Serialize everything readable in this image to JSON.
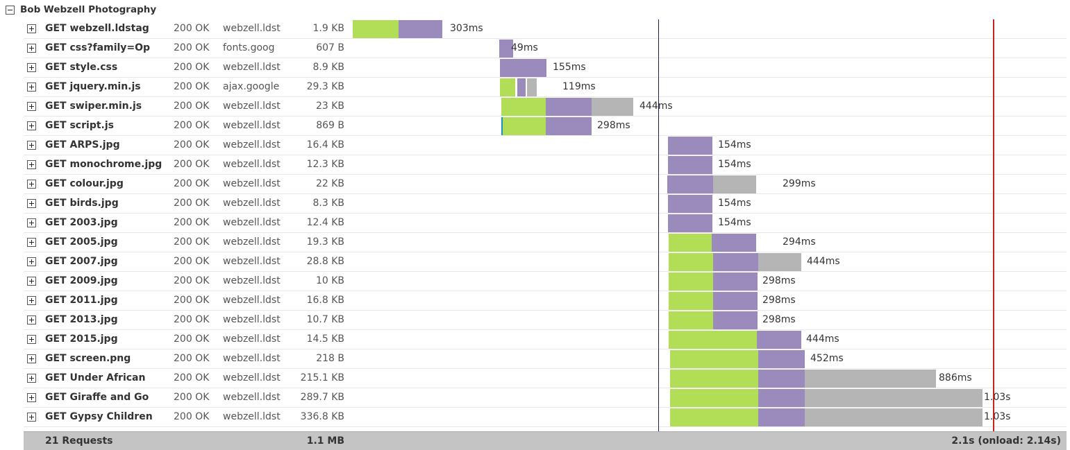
{
  "group": {
    "title": "Bob Webzell Photography"
  },
  "requests": [
    {
      "name": "GET webzell.ldstag",
      "status": "200 OK",
      "host": "webzell.ldst",
      "size": "1.9 KB",
      "duration": "303ms"
    },
    {
      "name": "GET css?family=Op",
      "status": "200 OK",
      "host": "fonts.goog",
      "size": "607 B",
      "duration": "49ms"
    },
    {
      "name": "GET style.css",
      "status": "200 OK",
      "host": "webzell.ldst",
      "size": "8.9 KB",
      "duration": "155ms"
    },
    {
      "name": "GET jquery.min.js",
      "status": "200 OK",
      "host": "ajax.google",
      "size": "29.3 KB",
      "duration": "119ms"
    },
    {
      "name": "GET swiper.min.js",
      "status": "200 OK",
      "host": "webzell.ldst",
      "size": "23 KB",
      "duration": "444ms"
    },
    {
      "name": "GET script.js",
      "status": "200 OK",
      "host": "webzell.ldst",
      "size": "869 B",
      "duration": "298ms"
    },
    {
      "name": "GET ARPS.jpg",
      "status": "200 OK",
      "host": "webzell.ldst",
      "size": "16.4 KB",
      "duration": "154ms"
    },
    {
      "name": "GET monochrome.jpg",
      "status": "200 OK",
      "host": "webzell.ldst",
      "size": "12.3 KB",
      "duration": "154ms"
    },
    {
      "name": "GET colour.jpg",
      "status": "200 OK",
      "host": "webzell.ldst",
      "size": "22 KB",
      "duration": "299ms"
    },
    {
      "name": "GET birds.jpg",
      "status": "200 OK",
      "host": "webzell.ldst",
      "size": "8.3 KB",
      "duration": "154ms"
    },
    {
      "name": "GET 2003.jpg",
      "status": "200 OK",
      "host": "webzell.ldst",
      "size": "12.4 KB",
      "duration": "154ms"
    },
    {
      "name": "GET 2005.jpg",
      "status": "200 OK",
      "host": "webzell.ldst",
      "size": "19.3 KB",
      "duration": "294ms"
    },
    {
      "name": "GET 2007.jpg",
      "status": "200 OK",
      "host": "webzell.ldst",
      "size": "28.8 KB",
      "duration": "444ms"
    },
    {
      "name": "GET 2009.jpg",
      "status": "200 OK",
      "host": "webzell.ldst",
      "size": "10 KB",
      "duration": "298ms"
    },
    {
      "name": "GET 2011.jpg",
      "status": "200 OK",
      "host": "webzell.ldst",
      "size": "16.8 KB",
      "duration": "298ms"
    },
    {
      "name": "GET 2013.jpg",
      "status": "200 OK",
      "host": "webzell.ldst",
      "size": "10.7 KB",
      "duration": "298ms"
    },
    {
      "name": "GET 2015.jpg",
      "status": "200 OK",
      "host": "webzell.ldst",
      "size": "14.5 KB",
      "duration": "444ms"
    },
    {
      "name": "GET screen.png",
      "status": "200 OK",
      "host": "webzell.ldst",
      "size": "218 B",
      "duration": "452ms"
    },
    {
      "name": "GET Under African",
      "status": "200 OK",
      "host": "webzell.ldst",
      "size": "215.1 KB",
      "duration": "886ms"
    },
    {
      "name": "GET Giraffe and Go",
      "status": "200 OK",
      "host": "webzell.ldst",
      "size": "289.7 KB",
      "duration": "1.03s"
    },
    {
      "name": "GET Gypsy Children",
      "status": "200 OK",
      "host": "webzell.ldst",
      "size": "336.8 KB",
      "duration": "1.03s"
    }
  ],
  "footer": {
    "count": "21 Requests",
    "total_size": "1.1 MB",
    "total_time": "2.1s (onload: 2.14s)"
  },
  "colors": {
    "connect": "#b2dd57",
    "wait": "#9b8bbd",
    "receive": "#b5b5b5",
    "dns": "#1e90c8",
    "dom_line": "#1b1b5a",
    "load_line": "#c92020"
  }
}
